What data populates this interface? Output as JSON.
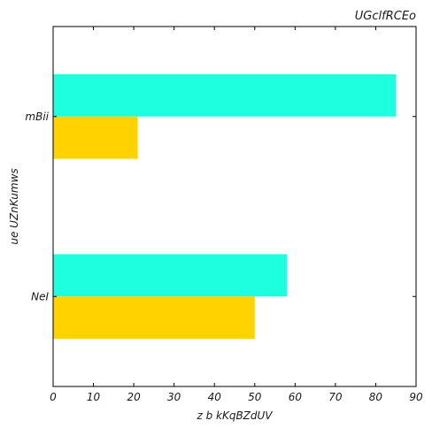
{
  "chart_data": {
    "type": "bar",
    "orientation": "horizontal",
    "title": "UGclfRCEo",
    "xlabel": "z b kKqBZdUV",
    "ylabel": "ue  UZnKumws",
    "categories": [
      "NeI",
      "mBii"
    ],
    "series": [
      {
        "values": [
          58,
          85
        ],
        "color": "#1effdf"
      },
      {
        "values": [
          50,
          21
        ],
        "color": "#ffd200"
      }
    ],
    "xlim": [
      0,
      90
    ],
    "xticks": [
      0,
      10,
      20,
      30,
      40,
      50,
      60,
      70,
      80,
      90
    ],
    "grid": false,
    "legend": "none"
  }
}
